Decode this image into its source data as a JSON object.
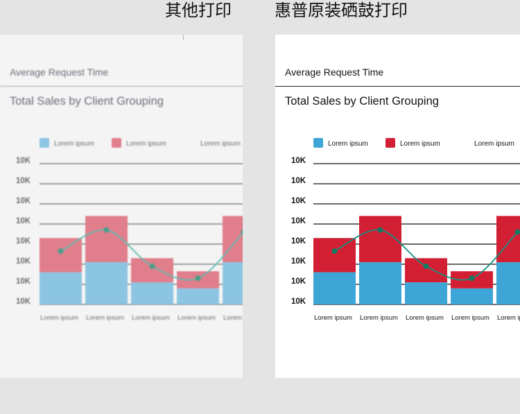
{
  "headers": {
    "left": "其他打印",
    "right": "惠普原装硒鼓打印"
  },
  "panel": {
    "subtitle": "Average Request Time",
    "title": "Total Sales by Client Grouping"
  },
  "colors": {
    "blue": "#3ea6d6",
    "red": "#d31f33",
    "line": "#14917f",
    "point": "#127a62",
    "blue_faded": "#7bbde0",
    "red_faded": "#dd6a79",
    "line_faded": "#40b3a3",
    "point_faded": "#2f8f78"
  },
  "chart_data": {
    "type": "bar",
    "stacked": true,
    "legend": [
      "Lorem ipsum",
      "Lorem ipsum",
      "Lorem ipsum"
    ],
    "legend_placement": "top",
    "y_tick_labels": [
      "10K",
      "10K",
      "10K",
      "10K",
      "10K",
      "10K",
      "10K",
      "10K"
    ],
    "ylim": [
      0,
      7
    ],
    "grid": true,
    "categories": [
      "Lorem ipsum",
      "Lorem ipsum",
      "Lorem ipsum",
      "Lorem ipsum",
      "Lorem ipsum"
    ],
    "series": [
      {
        "name": "Lorem ipsum",
        "kind": "bar",
        "values": [
          1.6,
          2.1,
          1.1,
          0.8,
          2.1
        ]
      },
      {
        "name": "Lorem ipsum",
        "kind": "bar",
        "values": [
          1.7,
          2.3,
          1.2,
          0.85,
          2.3
        ]
      },
      {
        "name": "Lorem ipsum",
        "kind": "line",
        "values": [
          2.65,
          3.7,
          1.9,
          1.3,
          3.6
        ]
      }
    ]
  }
}
